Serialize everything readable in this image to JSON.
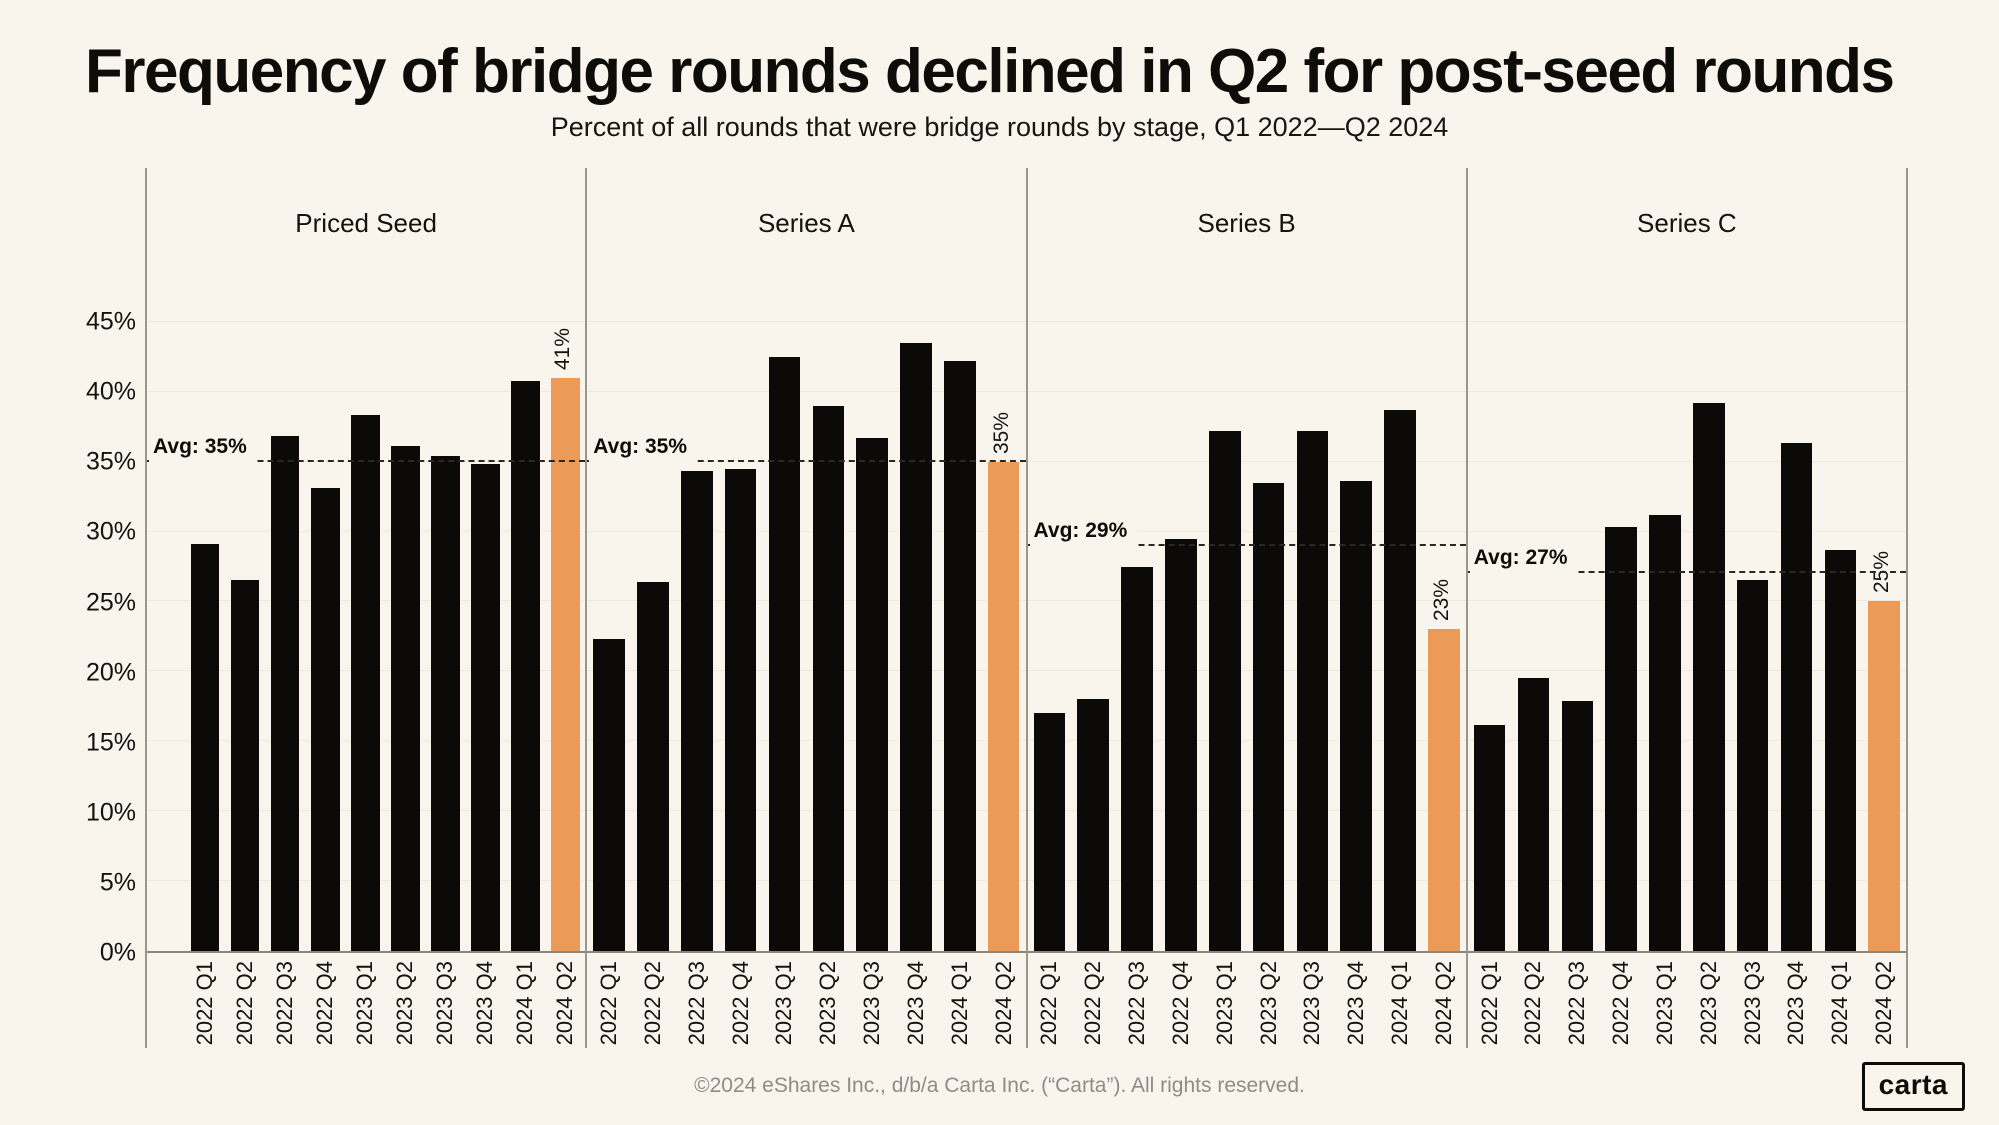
{
  "title": "Frequency of bridge rounds declined in Q2 for post-seed rounds",
  "subtitle": "Percent of all rounds that were bridge rounds by stage, Q1 2022—Q2 2024",
  "footer": {
    "copyright": "©2024 eShares Inc., d/b/a Carta Inc. (“Carta”). All rights reserved.",
    "logo": "carta"
  },
  "colors": {
    "background": "#f9f5ed",
    "bar": "#0b0a08",
    "highlight": "#ec9a57",
    "avg_line": "#2b2823",
    "axis": "#8a8680",
    "grid": "#f0eadd",
    "footer_text": "#8f8b85"
  },
  "chart_data": {
    "type": "bar",
    "title": "Frequency of bridge rounds declined in Q2 for post-seed rounds",
    "subtitle": "Percent of all rounds that were bridge rounds by stage, Q1 2022—Q2 2024",
    "categories": [
      "2022 Q1",
      "2022 Q2",
      "2022 Q3",
      "2022 Q4",
      "2023 Q1",
      "2023 Q2",
      "2023 Q3",
      "2023 Q4",
      "2024 Q1",
      "2024 Q2"
    ],
    "ylabel": "",
    "xlabel": "",
    "ylim": [
      0,
      56
    ],
    "yticks": [
      45,
      40,
      35,
      30,
      25,
      20,
      15,
      10,
      5,
      0
    ],
    "grid": "faint horizontal",
    "highlight_category": "2024 Q2",
    "panels": [
      {
        "label": "Priced Seed",
        "avg_label": "Avg: 35%",
        "avg_value": 35,
        "highlight_label": "41%",
        "values": [
          29.1,
          26.5,
          36.8,
          33.1,
          38.3,
          36.1,
          35.4,
          34.8,
          40.8,
          41
        ]
      },
      {
        "label": "Series A",
        "avg_label": "Avg: 35%",
        "avg_value": 35,
        "highlight_label": "35%",
        "values": [
          22.3,
          26.4,
          34.3,
          34.5,
          42.5,
          39.0,
          36.7,
          43.5,
          42.2,
          35
        ]
      },
      {
        "label": "Series B",
        "avg_label": "Avg: 29%",
        "avg_value": 29,
        "highlight_label": "23%",
        "values": [
          17.0,
          18.0,
          27.5,
          29.5,
          37.2,
          33.5,
          37.2,
          33.6,
          38.7,
          23
        ]
      },
      {
        "label": "Series C",
        "avg_label": "Avg: 27%",
        "avg_value": 27,
        "highlight_label": "25%",
        "values": [
          16.2,
          19.5,
          17.9,
          30.3,
          31.2,
          39.2,
          26.5,
          36.3,
          28.7,
          25
        ]
      }
    ]
  }
}
